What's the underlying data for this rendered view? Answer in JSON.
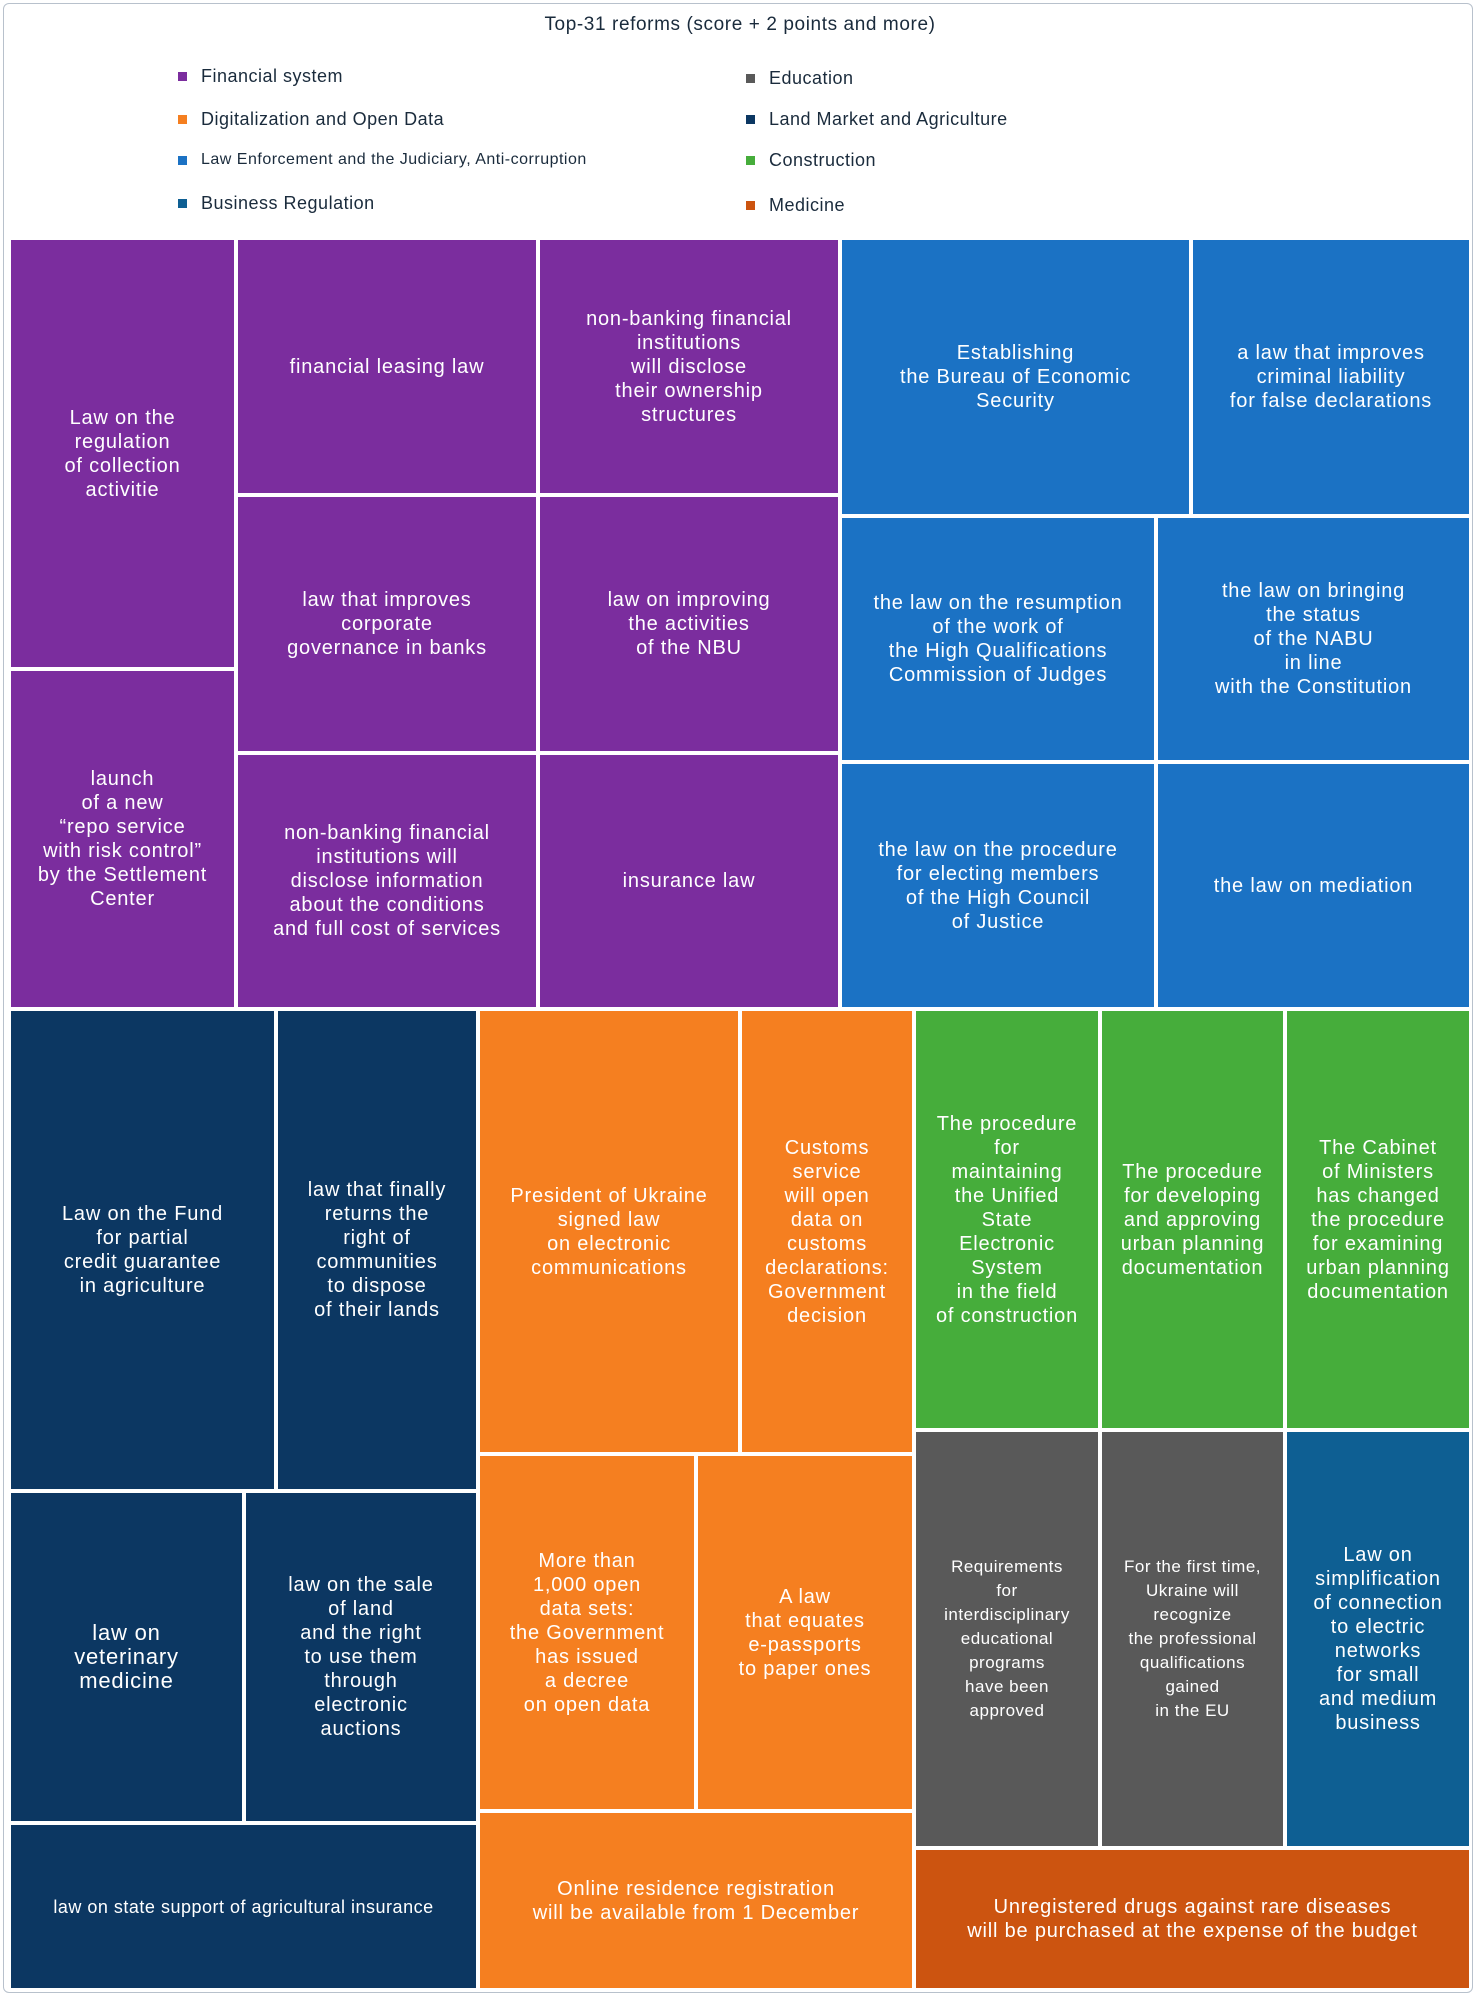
{
  "chart_data": {
    "type": "treemap",
    "title": "Top-31 reforms (score + 2 points and more)",
    "legend": [
      {
        "label": "Financial system",
        "color": "#7b2d9e"
      },
      {
        "label": "Education",
        "color": "#595959"
      },
      {
        "label": "Digitalization and Open Data",
        "color": "#f57f20"
      },
      {
        "label": "Land Market and Agriculture",
        "color": "#0c3762"
      },
      {
        "label": "Law Enforcement and the Judiciary, Anti-corruption",
        "color": "#1b72c4"
      },
      {
        "label": "Construction",
        "color": "#46ad3b"
      },
      {
        "label": "Business Regulation",
        "color": "#0e5f93"
      },
      {
        "label": "Medicine",
        "color": "#cc5410"
      }
    ],
    "cells": [
      {
        "id": "c1",
        "category": "Financial system",
        "label": "Law on the\nregulation\nof collection\nactivitie"
      },
      {
        "id": "c2",
        "category": "Financial system",
        "label": "launch\nof a new\n“repo service\nwith risk control”\nby the Settlement\nCenter"
      },
      {
        "id": "c3",
        "category": "Financial system",
        "label": "financial leasing law"
      },
      {
        "id": "c4",
        "category": "Financial system",
        "label": "law that improves\ncorporate\ngovernance in banks"
      },
      {
        "id": "c5",
        "category": "Financial system",
        "label": "non-banking financial\ninstitutions will\ndisclose information\nabout the conditions\nand full cost of services"
      },
      {
        "id": "c6",
        "category": "Financial system",
        "label": "non-banking financial\ninstitutions\nwill disclose\ntheir ownership\nstructures"
      },
      {
        "id": "c7",
        "category": "Financial system",
        "label": "law on improving\nthe activities\nof the NBU"
      },
      {
        "id": "c8",
        "category": "Financial system",
        "label": "insurance law"
      },
      {
        "id": "c9",
        "category": "Law Enforcement and the Judiciary, Anti-corruption",
        "label": "Establishing\nthe Bureau of Economic\nSecurity"
      },
      {
        "id": "c10",
        "category": "Law Enforcement and the Judiciary, Anti-corruption",
        "label": "a law that improves\ncriminal liability\nfor false declarations"
      },
      {
        "id": "c11",
        "category": "Law Enforcement and the Judiciary, Anti-corruption",
        "label": "the law on the resumption\nof the work of\nthe High Qualifications\nCommission of Judges"
      },
      {
        "id": "c12",
        "category": "Law Enforcement and the Judiciary, Anti-corruption",
        "label": "the law on bringing\nthe status\nof the NABU\nin line\nwith the Constitution"
      },
      {
        "id": "c13",
        "category": "Law Enforcement and the Judiciary, Anti-corruption",
        "label": "the law on the procedure\nfor electing members\nof the High Council\nof Justice"
      },
      {
        "id": "c14",
        "category": "Law Enforcement and the Judiciary, Anti-corruption",
        "label": "the law on mediation"
      },
      {
        "id": "c15",
        "category": "Land Market and Agriculture",
        "label": "Law on the Fund\nfor partial\ncredit guarantee\nin agriculture"
      },
      {
        "id": "c16",
        "category": "Land Market and Agriculture",
        "label": "law that finally\nreturns the\nright of\ncommunities\nto dispose\nof their lands"
      },
      {
        "id": "c17",
        "category": "Land Market and Agriculture",
        "label": "law on\nveterinary\nmedicine"
      },
      {
        "id": "c18",
        "category": "Land Market and Agriculture",
        "label": "law on the sale\nof land\nand the right\nto use them\nthrough\nelectronic\nauctions"
      },
      {
        "id": "c19",
        "category": "Land Market and Agriculture",
        "label": "law on state support of agricultural insurance"
      },
      {
        "id": "c20",
        "category": "Digitalization and Open Data",
        "label": "President of Ukraine\nsigned law\non electronic\ncommunications"
      },
      {
        "id": "c21",
        "category": "Digitalization and Open Data",
        "label": "Customs\nservice\nwill open\ndata on\ncustoms\ndeclarations:\nGovernment\ndecision"
      },
      {
        "id": "c22",
        "category": "Digitalization and Open Data",
        "label": "More than\n1,000 open\ndata sets:\nthe Government\nhas issued\na decree\non open data"
      },
      {
        "id": "c23",
        "category": "Digitalization and Open Data",
        "label": "A law\nthat equates\ne-passports\nto paper ones"
      },
      {
        "id": "c24",
        "category": "Digitalization and Open Data",
        "label": "Online residence registration\nwill be available from 1 December"
      },
      {
        "id": "c25",
        "category": "Construction",
        "label": "The procedure\nfor\nmaintaining\nthe Unified\nState\nElectronic\nSystem\nin the field\nof construction"
      },
      {
        "id": "c26",
        "category": "Construction",
        "label": "The procedure\nfor developing\nand approving\nurban planning\ndocumentation"
      },
      {
        "id": "c27",
        "category": "Construction",
        "label": "The Cabinet\nof Ministers\nhas changed\nthe procedure\nfor examining\nurban planning\ndocumentation"
      },
      {
        "id": "c28",
        "category": "Education",
        "label": "Requirements\nfor\ninterdisciplinary\neducational\nprograms\nhave been\napproved"
      },
      {
        "id": "c29",
        "category": "Education",
        "label": "For the first time,\nUkraine will\nrecognize\nthe professional\nqualifications\ngained\nin the EU"
      },
      {
        "id": "c30",
        "category": "Business Regulation",
        "label": "Law on\nsimplification\nof connection\nto electric\nnetworks\nfor small\nand medium\nbusiness"
      },
      {
        "id": "c31",
        "category": "Medicine",
        "label": "Unregistered drugs against rare diseases\nwill be purchased at the expense of the budget"
      }
    ]
  }
}
